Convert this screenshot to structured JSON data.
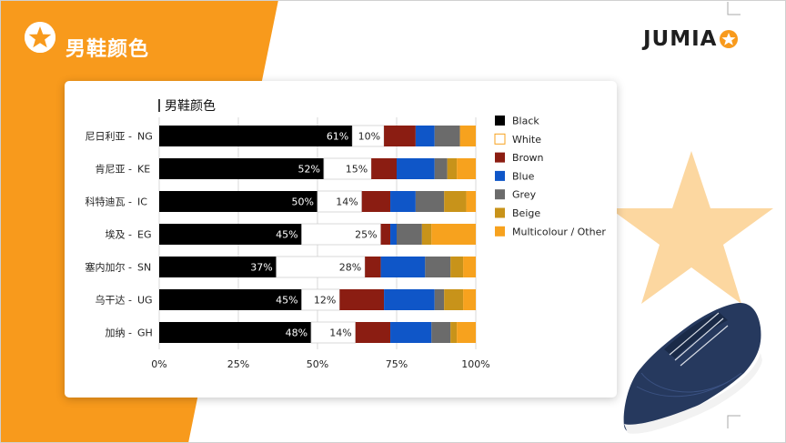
{
  "slide": {
    "title": "男鞋颜色",
    "logo_text": "JUMIA",
    "colors": {
      "orange": "#F89A1C",
      "star_fill": "#FCD7A0",
      "shoe_blue": "#26395E"
    }
  },
  "chart_data": {
    "type": "bar",
    "orientation": "horizontal",
    "stacked": true,
    "title": "男鞋颜色",
    "xlabel": "",
    "ylabel": "",
    "xlim": [
      0,
      100
    ],
    "x_ticks": [
      "0%",
      "25%",
      "50%",
      "75%",
      "100%"
    ],
    "categories": [
      {
        "name": "尼日利亚",
        "code": "NG"
      },
      {
        "name": "肯尼亚",
        "code": "KE"
      },
      {
        "name": "科特迪瓦",
        "code": "IC"
      },
      {
        "name": "埃及",
        "code": "EG"
      },
      {
        "name": "塞内加尔",
        "code": "SN"
      },
      {
        "name": "乌干达",
        "code": "UG"
      },
      {
        "name": "加纳",
        "code": "GH"
      }
    ],
    "series": [
      {
        "name": "Black",
        "color": "#000000",
        "values": [
          61,
          52,
          50,
          45,
          37,
          45,
          48
        ],
        "labels": [
          "61%",
          "52%",
          "50%",
          "45%",
          "37%",
          "45%",
          "48%"
        ]
      },
      {
        "name": "White",
        "color": "#FFFFFF",
        "values": [
          10,
          15,
          14,
          25,
          28,
          12,
          14
        ],
        "labels": [
          "10%",
          "15%",
          "14%",
          "25%",
          "28%",
          "12%",
          "14%"
        ]
      },
      {
        "name": "Brown",
        "color": "#8B1D12",
        "values": [
          10,
          8,
          9,
          3,
          5,
          14,
          11
        ],
        "labels": []
      },
      {
        "name": "Blue",
        "color": "#0F56C8",
        "values": [
          6,
          12,
          8,
          2,
          14,
          16,
          13
        ],
        "labels": []
      },
      {
        "name": "Grey",
        "color": "#6B6B6B",
        "values": [
          8,
          4,
          9,
          8,
          8,
          3,
          6
        ],
        "labels": []
      },
      {
        "name": "Beige",
        "color": "#C8931A",
        "values": [
          0,
          3,
          7,
          3,
          4,
          6,
          2
        ],
        "labels": []
      },
      {
        "name": "Multicolour / Other",
        "color": "#F7A21E",
        "values": [
          5,
          6,
          3,
          14,
          4,
          4,
          6
        ],
        "labels": []
      }
    ],
    "legend_position": "right",
    "grid": true
  }
}
